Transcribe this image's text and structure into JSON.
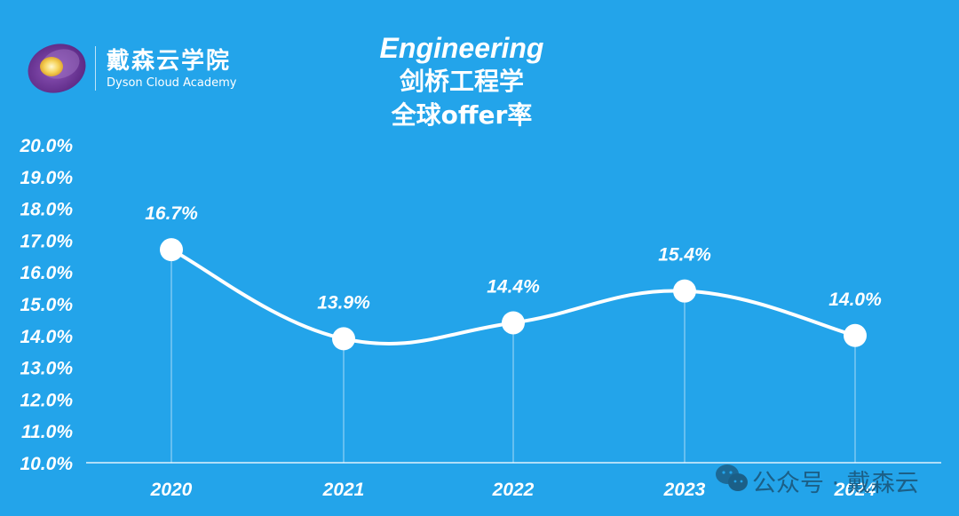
{
  "logo": {
    "name_cn": "戴森云学院",
    "name_en": "Dyson Cloud Academy",
    "icon": "dyson-logo-eye-icon"
  },
  "title": {
    "line1": "Engineering",
    "line2": "剑桥工程学",
    "line3": "全球offer率"
  },
  "watermark": {
    "icon": "wechat-icon",
    "text": "公众号 · 戴森云"
  },
  "colors": {
    "background": "#23a4ea",
    "line": "#ffffff",
    "text": "#ffffff",
    "watermark_text": "#1b5f87"
  },
  "chart_data": {
    "type": "line",
    "title": "Engineering 剑桥工程学 全球offer率",
    "xlabel": "",
    "ylabel": "",
    "categories": [
      "2020",
      "2021",
      "2022",
      "2023",
      "2024"
    ],
    "values": [
      16.7,
      13.9,
      14.4,
      15.4,
      14.0
    ],
    "data_labels": [
      "16.7%",
      "13.9%",
      "14.4%",
      "15.4%",
      "14.0%"
    ],
    "ylim": [
      10.0,
      20.0
    ],
    "y_ticks": [
      "20.0%",
      "19.0%",
      "18.0%",
      "17.0%",
      "16.0%",
      "15.0%",
      "14.0%",
      "13.0%",
      "12.0%",
      "11.0%",
      "10.0%"
    ],
    "smooth": true,
    "markers": true,
    "drop_lines": true,
    "grid": false,
    "legend": null
  }
}
